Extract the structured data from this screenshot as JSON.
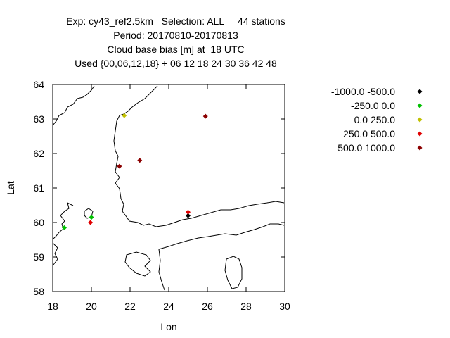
{
  "title_lines": [
    "Exp: cy43_ref2.5km   Selection: ALL     44 stations",
    "Period: 20170810-20170813",
    "Cloud base bias [m] at  18 UTC",
    "Used {00,06,12,18} + 06 12 18 24 30 36 42 48"
  ],
  "chart_data": {
    "type": "scatter",
    "title": "Exp: cy43_ref2.5km   Selection: ALL     44 stations",
    "xlabel": "Lon",
    "ylabel": "Lat",
    "xlim": [
      18,
      30
    ],
    "ylim": [
      58,
      64
    ],
    "x_ticks": [
      18,
      20,
      22,
      24,
      26,
      28,
      30
    ],
    "y_ticks": [
      58,
      59,
      60,
      61,
      62,
      63,
      64
    ],
    "grid": false,
    "legend_position": "right",
    "series": [
      {
        "name": "-1000.0 -500.0",
        "color": "#000000",
        "points": [
          {
            "x": 25.0,
            "y": 60.2
          }
        ]
      },
      {
        "name": "-250.0 0.0",
        "color": "#00c000",
        "points": [
          {
            "x": 18.6,
            "y": 59.85
          },
          {
            "x": 20.0,
            "y": 60.15
          }
        ]
      },
      {
        "name": "0.0 250.0",
        "color": "#c0c000",
        "points": [
          {
            "x": 21.7,
            "y": 63.1
          }
        ]
      },
      {
        "name": "250.0 500.0",
        "color": "#e00000",
        "points": [
          {
            "x": 19.95,
            "y": 60.0
          },
          {
            "x": 25.0,
            "y": 60.3
          }
        ]
      },
      {
        "name": "500.0 1000.0",
        "color": "#8b0000",
        "points": [
          {
            "x": 25.9,
            "y": 63.08
          },
          {
            "x": 22.5,
            "y": 61.8
          },
          {
            "x": 21.45,
            "y": 61.63
          }
        ]
      }
    ]
  }
}
